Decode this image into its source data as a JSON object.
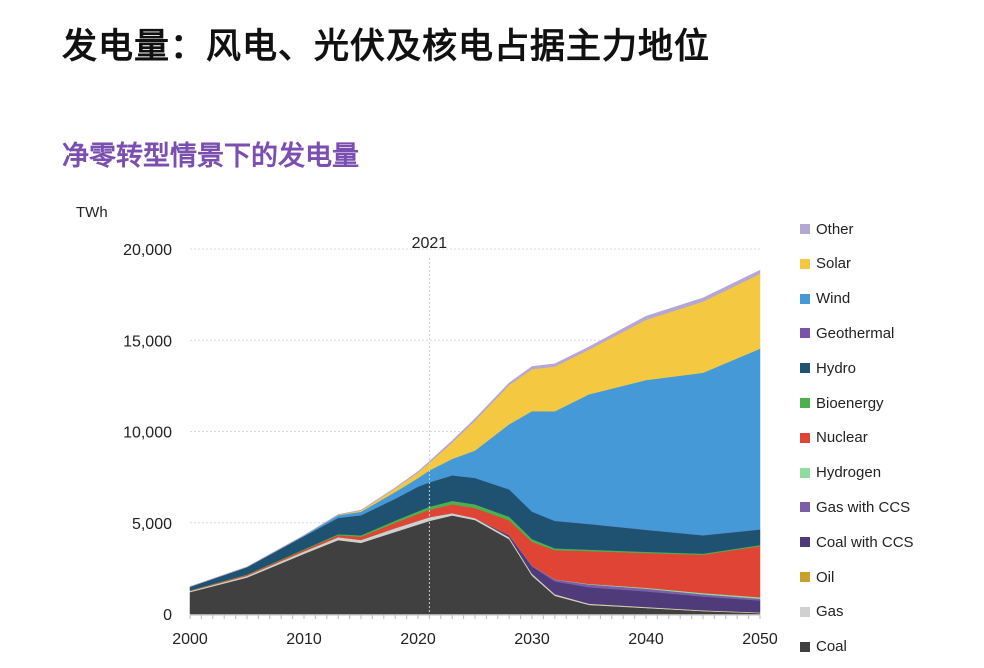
{
  "title": "发电量：风电、光伏及核电占据主力地位",
  "subtitle": "净零转型情景下的发电量",
  "chart_data": {
    "type": "area",
    "stacked": true,
    "ylabel": "TWh",
    "xlim": [
      2000,
      2050
    ],
    "ylim": [
      0,
      20000
    ],
    "yticks": [
      "0",
      "5,000",
      "10,000",
      "15,000",
      "20,000"
    ],
    "xticks": [
      "2000",
      "2010",
      "2020",
      "2030",
      "2040",
      "2050"
    ],
    "yticks_values": [
      0,
      5000,
      10000,
      15000,
      20000
    ],
    "xticks_values": [
      2000,
      2010,
      2020,
      2030,
      2040,
      2050
    ],
    "annotation": {
      "label": "2021",
      "x": 2021
    },
    "grid": "horizontal",
    "legend_position": "right",
    "x": [
      2000,
      2005,
      2010,
      2013,
      2015,
      2018,
      2020,
      2021,
      2023,
      2025,
      2028,
      2030,
      2032,
      2035,
      2040,
      2045,
      2050
    ],
    "series": [
      {
        "name": "Other",
        "color": "#b4a7d6",
        "values": [
          0,
          0,
          10,
          20,
          30,
          50,
          60,
          80,
          100,
          120,
          120,
          150,
          150,
          150,
          200,
          200,
          200
        ]
      },
      {
        "name": "Solar",
        "color": "#f5c842",
        "values": [
          0,
          0,
          0,
          20,
          60,
          180,
          300,
          420,
          900,
          1630,
          2150,
          2300,
          2450,
          2450,
          3300,
          3900,
          4100
        ]
      },
      {
        "name": "Wind",
        "color": "#4499d6",
        "values": [
          0,
          10,
          40,
          140,
          190,
          370,
          470,
          650,
          900,
          1500,
          3570,
          5500,
          6000,
          7100,
          8200,
          8900,
          9900
        ]
      },
      {
        "name": "Geothermal",
        "color": "#7b52ab",
        "values": [
          0,
          0,
          0,
          0,
          0,
          0,
          0,
          0,
          0,
          0,
          0,
          5,
          10,
          10,
          10,
          10,
          10
        ]
      },
      {
        "name": "Hydro",
        "color": "#1f5270",
        "values": [
          200,
          400,
          720,
          900,
          1100,
          1200,
          1350,
          1340,
          1400,
          1450,
          1500,
          1500,
          1500,
          1400,
          1200,
          1000,
          850
        ]
      },
      {
        "name": "Bioenergy",
        "color": "#4caf50",
        "values": [
          10,
          20,
          30,
          50,
          80,
          120,
          150,
          170,
          190,
          200,
          200,
          150,
          100,
          80,
          70,
          60,
          60
        ]
      },
      {
        "name": "Nuclear",
        "color": "#e04434",
        "values": [
          20,
          50,
          75,
          110,
          170,
          290,
          370,
          400,
          480,
          550,
          800,
          1300,
          1600,
          1800,
          1900,
          2100,
          2800
        ]
      },
      {
        "name": "Hydrogen",
        "color": "#90dca0",
        "values": [
          0,
          0,
          0,
          0,
          0,
          0,
          0,
          0,
          0,
          0,
          0,
          0,
          10,
          30,
          50,
          70,
          80
        ]
      },
      {
        "name": "Gas with CCS",
        "color": "#7b5ea7",
        "values": [
          0,
          0,
          0,
          0,
          0,
          0,
          0,
          0,
          0,
          0,
          20,
          50,
          100,
          150,
          150,
          120,
          100
        ]
      },
      {
        "name": "Coal with CCS",
        "color": "#4f3a7a",
        "values": [
          0,
          0,
          0,
          0,
          0,
          0,
          0,
          0,
          0,
          0,
          100,
          400,
          700,
          900,
          850,
          750,
          650
        ]
      },
      {
        "name": "Oil",
        "color": "#c9a02a",
        "values": [
          20,
          20,
          20,
          15,
          15,
          10,
          10,
          10,
          10,
          10,
          10,
          10,
          10,
          10,
          10,
          10,
          10
        ]
      },
      {
        "name": "Gas",
        "color": "#d0d0d0",
        "values": [
          50,
          80,
          120,
          150,
          150,
          200,
          200,
          200,
          120,
          100,
          100,
          100,
          80,
          60,
          50,
          40,
          30
        ]
      },
      {
        "name": "Coal",
        "color": "#404040",
        "values": [
          1200,
          2000,
          3300,
          4050,
          3900,
          4500,
          4900,
          5100,
          5400,
          5150,
          4100,
          2100,
          1000,
          500,
          330,
          160,
          50
        ]
      }
    ]
  }
}
